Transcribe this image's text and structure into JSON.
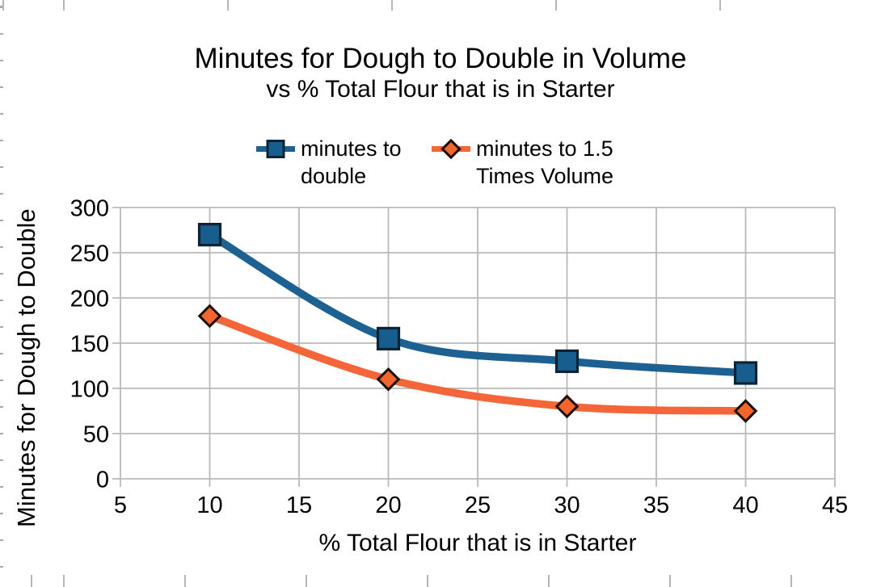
{
  "chart_data": {
    "type": "line",
    "title": "Minutes for Dough to Double in Volume",
    "subtitle": "vs % Total Flour that is in Starter",
    "xlabel": "% Total Flour that is in Starter",
    "ylabel": "Minutes for Dough to Double",
    "xlim": [
      5,
      45
    ],
    "ylim": [
      0,
      300
    ],
    "x_ticks": [
      5,
      10,
      15,
      20,
      25,
      30,
      35,
      40,
      45
    ],
    "y_ticks": [
      0,
      50,
      100,
      150,
      200,
      250,
      300
    ],
    "grid": true,
    "legend_position": "top-center",
    "line_style": "smooth",
    "x": [
      10,
      20,
      30,
      40
    ],
    "series": [
      {
        "name": "minutes to double",
        "values": [
          270,
          155,
          130,
          117
        ],
        "color": "#1d6193",
        "marker": "square",
        "marker_fill": "#155e8d",
        "marker_border": "#0d2233"
      },
      {
        "name": "minutes to 1.5 Times Volume",
        "values": [
          180,
          110,
          80,
          75
        ],
        "color": "#f4663a",
        "marker": "diamond",
        "marker_fill": "#f2662e",
        "marker_border": "#1a0e05"
      }
    ],
    "colors": {
      "gridline": "#b9b9b9",
      "text": "#000000",
      "background": "#ffffff"
    }
  }
}
